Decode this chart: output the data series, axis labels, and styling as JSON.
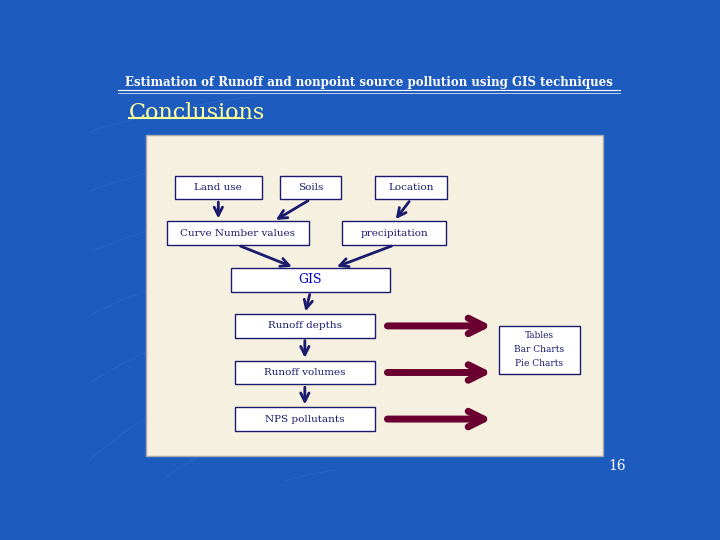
{
  "title": "Estimation of Runoff and nonpoint source pollution using GIS techniques",
  "heading": "Conclusions",
  "page_number": "16",
  "bg_color": "#1e5bbf",
  "title_color": "#ffffff",
  "heading_color": "#ffff99",
  "page_num_color": "#ffffff",
  "diagram_bg": "#f5f0e0",
  "box_fill": "#ffffff",
  "box_edge": "#1a1a6e",
  "arrow_color": "#1a1a6e",
  "side_arrow_color": "#6a0030",
  "gis_text_color": "#0000cc",
  "side_text": [
    "Tables",
    "Bar Charts",
    "Pie Charts"
  ]
}
